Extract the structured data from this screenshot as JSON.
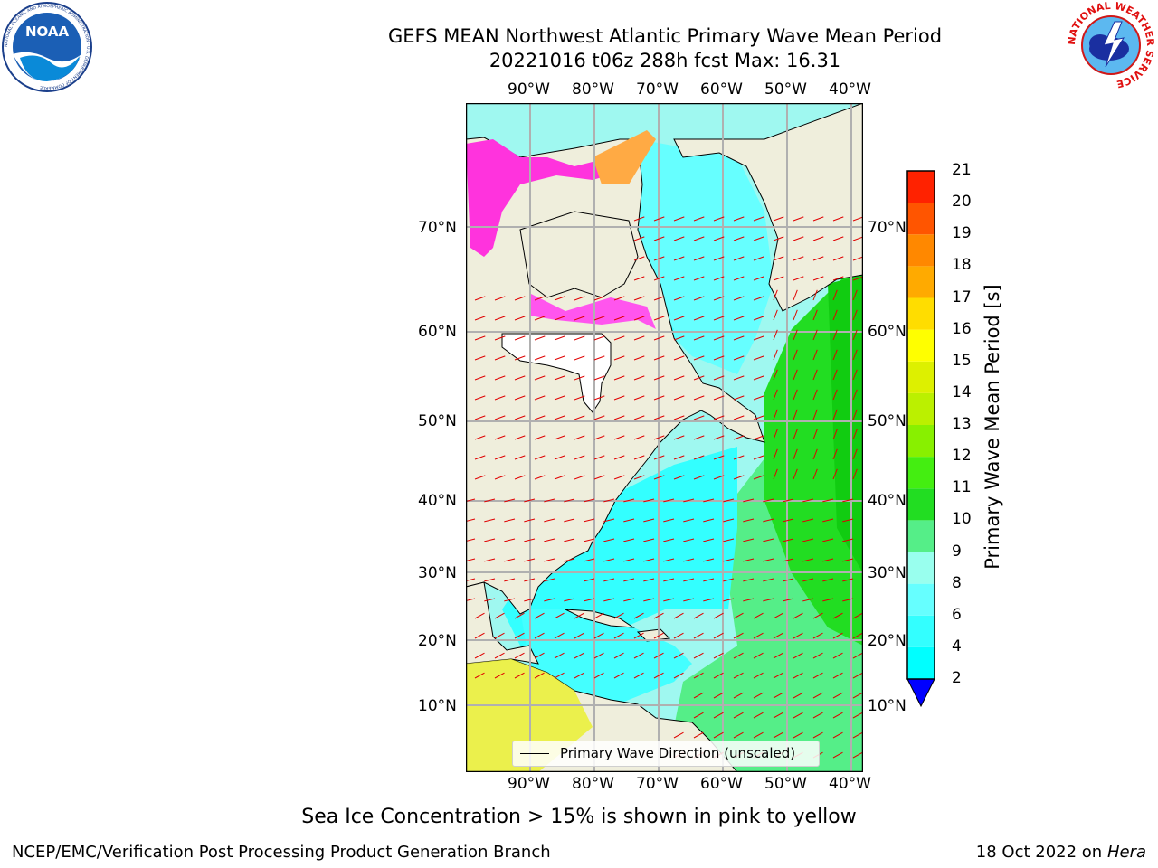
{
  "header": {
    "title_line1": "GEFS MEAN Northwest Atlantic Primary Wave Mean Period",
    "title_line2": "20221016 t06z 288h fcst   Max: 16.31"
  },
  "logos": {
    "left_text": "NOAA",
    "left_ring_text": "NATIONAL OCEANIC AND ATMOSPHERIC ADMINISTRATION · U.S. DEPARTMENT OF COMMERCE",
    "right_ring_text": "NATIONAL WEATHER SERVICE"
  },
  "map": {
    "lon_labels": [
      "90°W",
      "80°W",
      "70°W",
      "60°W",
      "50°W",
      "40°W"
    ],
    "lat_labels": [
      "70°N",
      "60°N",
      "50°N",
      "40°N",
      "30°N",
      "20°N",
      "10°N"
    ],
    "legend_label": "Primary Wave Direction (unscaled)"
  },
  "colorbar": {
    "label": "Primary Wave Mean Period [s]",
    "ticks": [
      "2",
      "4",
      "6",
      "8",
      "9",
      "10",
      "11",
      "12",
      "13",
      "14",
      "15",
      "16",
      "17",
      "18",
      "19",
      "20",
      "21"
    ],
    "colors": [
      "#0055ff",
      "#00ffff",
      "#33ffff",
      "#66ffff",
      "#99ffee",
      "#55ee88",
      "#22dd22",
      "#44ee11",
      "#88f000",
      "#bbf000",
      "#ddf000",
      "#ffff00",
      "#ffdd00",
      "#ffaa00",
      "#ff8800",
      "#ff5500",
      "#ff2200",
      "#ff0000"
    ],
    "extend_color": "#0000ff"
  },
  "footer": {
    "note": "Sea Ice Concentration > 15% is shown in pink to yellow",
    "branch": "NCEP/EMC/Verification Post Processing Product Generation Branch",
    "date": "18 Oct 2022 on ",
    "machine": "Hera"
  }
}
